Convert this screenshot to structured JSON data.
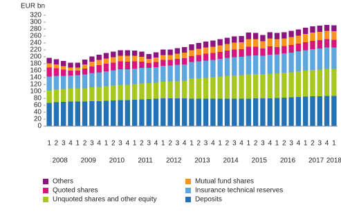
{
  "chart_data": {
    "type": "stacked_bar",
    "ylabel": "EUR bn",
    "categories": [
      "1",
      "2",
      "3",
      "4",
      "1",
      "2",
      "3",
      "4",
      "1",
      "2",
      "3",
      "4",
      "1",
      "2",
      "3",
      "4",
      "1",
      "2",
      "3",
      "4",
      "1",
      "2",
      "3",
      "4",
      "1",
      "2",
      "3",
      "4",
      "1",
      "2",
      "3",
      "4",
      "1",
      "2",
      "3",
      "4",
      "1",
      "2",
      "3",
      "4",
      "1"
    ],
    "year_labels": [
      "2008",
      null,
      null,
      null,
      "2009",
      null,
      null,
      null,
      "2010",
      null,
      null,
      null,
      "2011",
      null,
      null,
      null,
      "2012",
      null,
      null,
      null,
      "2013",
      null,
      null,
      null,
      "2014",
      null,
      null,
      null,
      "2015",
      null,
      null,
      null,
      "2016",
      null,
      null,
      null,
      "2017",
      null,
      null,
      null,
      "2018"
    ],
    "ylim": [
      0,
      320
    ],
    "yticks": [
      0,
      20,
      40,
      60,
      80,
      100,
      120,
      140,
      160,
      180,
      200,
      220,
      240,
      260,
      280,
      300,
      320
    ],
    "series": [
      {
        "name": "Deposits",
        "color": "#2372b5",
        "values": [
          67,
          69,
          70,
          71,
          71,
          71,
          72,
          72,
          73,
          74,
          75,
          75,
          76,
          77,
          78,
          79,
          80,
          80,
          80,
          80,
          79,
          79,
          79,
          79,
          79,
          79,
          79,
          79,
          79,
          80,
          80,
          80,
          81,
          82,
          83,
          84,
          85,
          86,
          86,
          87,
          87
        ]
      },
      {
        "name": "Unquoted shares and other equity",
        "color": "#a8c820",
        "values": [
          36,
          37,
          37,
          38,
          38,
          38,
          40,
          41,
          42,
          43,
          44,
          44,
          45,
          46,
          46,
          46,
          48,
          49,
          50,
          51,
          58,
          59,
          60,
          62,
          64,
          66,
          67,
          68,
          70,
          70,
          70,
          71,
          71,
          72,
          72,
          74,
          75,
          76,
          77,
          78,
          78
        ]
      },
      {
        "name": "Insurance technical reserves",
        "color": "#5ea6de",
        "values": [
          40,
          39,
          38,
          37,
          38,
          40,
          41,
          42,
          43,
          44,
          45,
          45,
          45,
          45,
          44,
          45,
          46,
          46,
          47,
          47,
          48,
          49,
          50,
          50,
          51,
          52,
          53,
          53,
          54,
          54,
          53,
          55,
          55,
          56,
          57,
          58,
          59,
          60,
          61,
          62,
          62
        ]
      },
      {
        "name": "Quoted shares",
        "color": "#d8157d",
        "values": [
          26,
          22,
          18,
          14,
          13,
          17,
          19,
          21,
          22,
          22,
          23,
          22,
          21,
          18,
          14,
          15,
          17,
          16,
          17,
          18,
          17,
          18,
          20,
          20,
          20,
          21,
          22,
          22,
          26,
          25,
          21,
          24,
          21,
          21,
          22,
          22,
          23,
          24,
          24,
          24,
          22
        ]
      },
      {
        "name": "Mutual fund shares",
        "color": "#f7951f",
        "values": [
          12,
          11,
          10,
          9,
          9,
          12,
          14,
          15,
          15,
          16,
          16,
          17,
          16,
          14,
          12,
          13,
          14,
          14,
          15,
          16,
          17,
          18,
          18,
          18,
          19,
          19,
          20,
          20,
          22,
          22,
          21,
          23,
          23,
          22,
          23,
          23,
          24,
          24,
          24,
          24,
          25
        ]
      },
      {
        "name": "Others",
        "color": "#8c1480",
        "values": [
          16,
          15,
          15,
          14,
          14,
          14,
          15,
          15,
          16,
          16,
          16,
          16,
          15,
          15,
          14,
          15,
          16,
          16,
          16,
          16,
          17,
          17,
          17,
          18,
          18,
          18,
          18,
          18,
          19,
          18,
          18,
          18,
          18,
          18,
          18,
          18,
          18,
          18,
          18,
          17,
          17
        ]
      }
    ]
  }
}
